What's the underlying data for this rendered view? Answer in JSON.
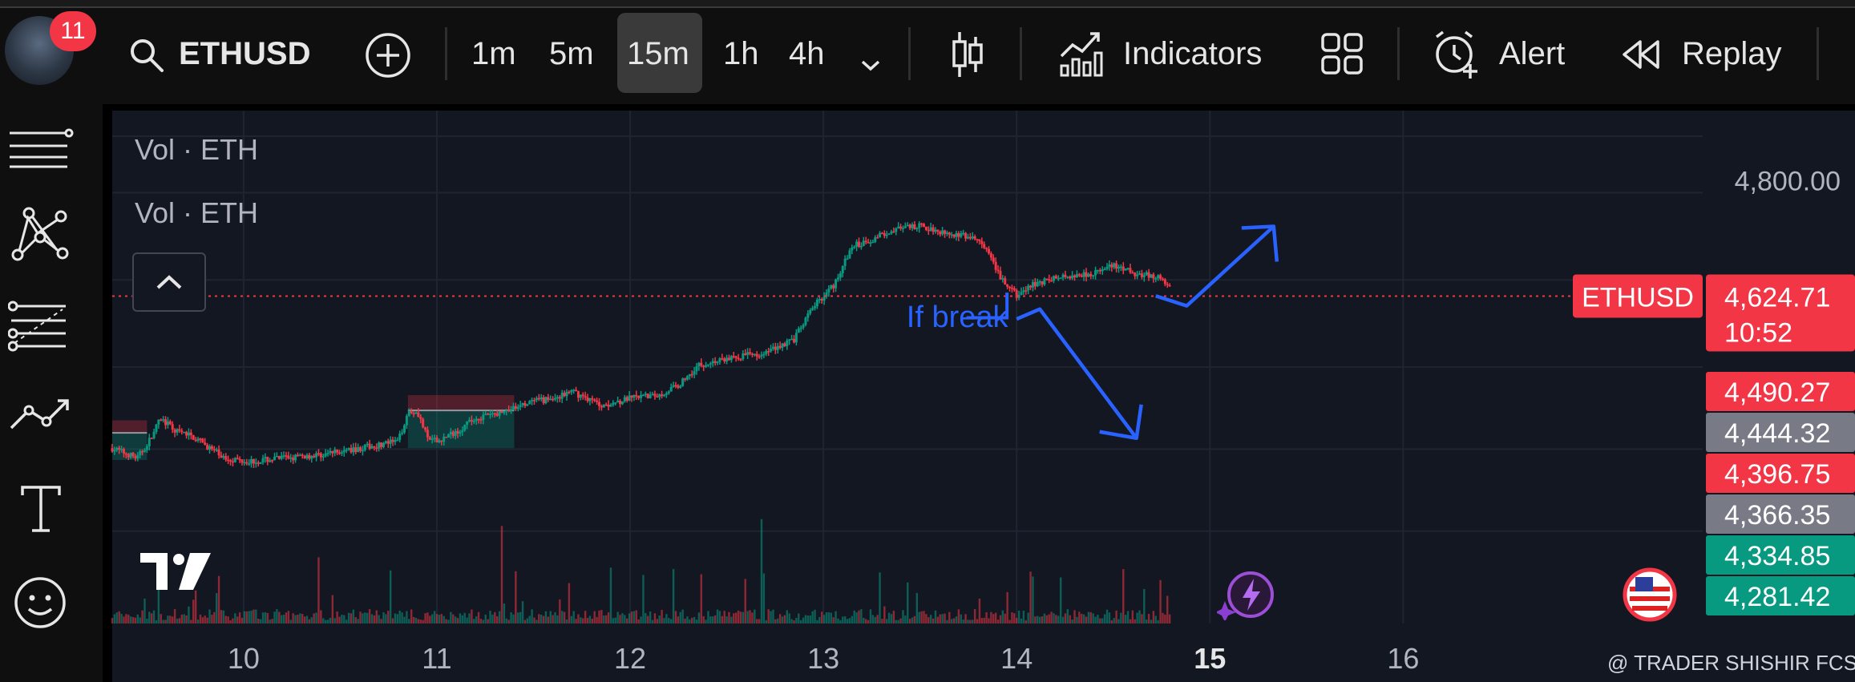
{
  "toolbar": {
    "notification_count": "11",
    "symbol": "ETHUSD",
    "timeframes": [
      "1m",
      "5m",
      "15m",
      "1h",
      "4h"
    ],
    "active_timeframe": "15m",
    "indicators_label": "Indicators",
    "alert_label": "Alert",
    "replay_label": "Replay"
  },
  "sidebar": {
    "tools": [
      "menu-lines-icon",
      "pattern-icon",
      "fib-lines-icon",
      "trend-line-icon",
      "text-icon",
      "emoji-icon"
    ]
  },
  "chart_data": {
    "type": "candlestick",
    "symbol": "ETHUSD",
    "legend": [
      "Vol · ETH",
      "Vol · ETH"
    ],
    "x_ticks": [
      "10",
      "11",
      "12",
      "13",
      "14",
      "15",
      "16"
    ],
    "x_tick_values": [
      10,
      11,
      12,
      13,
      14,
      15,
      16
    ],
    "highlight_tick": "15",
    "x_range": [
      9.32,
      17.55
    ],
    "y_range": [
      4130,
      4905
    ],
    "y_tick_label": "4,800.00",
    "y_tick_value": 4800,
    "current_price": 4624.71,
    "current_price_label": "4,624.71",
    "countdown": "10:52",
    "price_tags": [
      {
        "label": "4,490.27",
        "value": 4490.27,
        "color": "#f23645"
      },
      {
        "label": "4,444.32",
        "value": 4444.32,
        "color": "#787b86"
      },
      {
        "label": "4,396.75",
        "value": 4396.75,
        "color": "#f23645"
      },
      {
        "label": "4,366.35",
        "value": 4366.35,
        "color": "#787b86"
      },
      {
        "label": "4,334.85",
        "value": 4334.85,
        "color": "#089981"
      },
      {
        "label": "4,281.42",
        "value": 4281.42,
        "color": "#089981"
      }
    ],
    "price_path": [
      [
        9.32,
        4395
      ],
      [
        9.45,
        4380
      ],
      [
        9.52,
        4410
      ],
      [
        9.57,
        4440
      ],
      [
        9.65,
        4420
      ],
      [
        9.72,
        4415
      ],
      [
        9.8,
        4400
      ],
      [
        9.9,
        4380
      ],
      [
        10.05,
        4375
      ],
      [
        10.2,
        4380
      ],
      [
        10.4,
        4385
      ],
      [
        10.55,
        4392
      ],
      [
        10.7,
        4400
      ],
      [
        10.8,
        4405
      ],
      [
        10.85,
        4450
      ],
      [
        10.9,
        4450
      ],
      [
        10.95,
        4410
      ],
      [
        11.0,
        4405
      ],
      [
        11.1,
        4420
      ],
      [
        11.2,
        4440
      ],
      [
        11.35,
        4450
      ],
      [
        11.5,
        4465
      ],
      [
        11.6,
        4470
      ],
      [
        11.7,
        4480
      ],
      [
        11.78,
        4470
      ],
      [
        11.85,
        4460
      ],
      [
        12.0,
        4470
      ],
      [
        12.15,
        4475
      ],
      [
        12.25,
        4490
      ],
      [
        12.35,
        4520
      ],
      [
        12.5,
        4530
      ],
      [
        12.7,
        4540
      ],
      [
        12.85,
        4560
      ],
      [
        12.95,
        4610
      ],
      [
        13.05,
        4640
      ],
      [
        13.15,
        4700
      ],
      [
        13.25,
        4710
      ],
      [
        13.35,
        4725
      ],
      [
        13.5,
        4730
      ],
      [
        13.65,
        4720
      ],
      [
        13.8,
        4710
      ],
      [
        13.85,
        4690
      ],
      [
        13.9,
        4660
      ],
      [
        13.95,
        4640
      ],
      [
        14.0,
        4625
      ],
      [
        14.1,
        4645
      ],
      [
        14.25,
        4655
      ],
      [
        14.4,
        4660
      ],
      [
        14.5,
        4670
      ],
      [
        14.6,
        4660
      ],
      [
        14.7,
        4655
      ],
      [
        14.75,
        4650
      ],
      [
        14.8,
        4632
      ]
    ],
    "trade_boxes": [
      {
        "x0": 9.32,
        "x1": 9.5,
        "stop_top": 4437,
        "entry": 4418,
        "target_bottom": 4377
      },
      {
        "x0": 10.85,
        "x1": 11.4,
        "stop_top": 4475,
        "entry": 4452,
        "target_bottom": 4395
      }
    ],
    "annotation": {
      "text": "If break",
      "break_level": 4592,
      "up_arrow": [
        [
          14.72,
          4625
        ],
        [
          14.88,
          4610
        ],
        [
          15.33,
          4730
        ]
      ],
      "down_arrow": [
        [
          14.0,
          4590
        ],
        [
          14.12,
          4605
        ],
        [
          14.62,
          4410
        ]
      ]
    }
  },
  "watermark": "@ TRADER SHISHIR FCS"
}
